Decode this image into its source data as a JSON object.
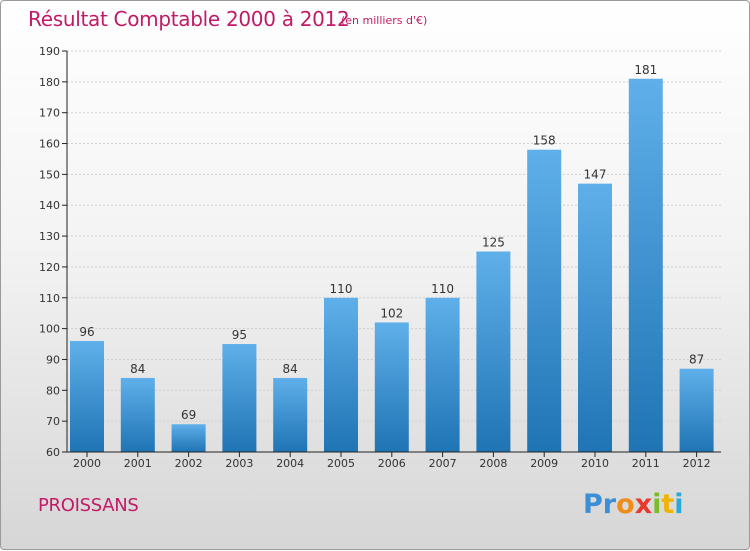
{
  "title": "Résultat Comptable 2000 à 2012",
  "unit_note": "(en milliers d'€)",
  "commune": "PROISSANS",
  "logo": {
    "letters": [
      "P",
      "r",
      "o",
      "x",
      "i",
      "t",
      "i"
    ],
    "colors": [
      "#3a8fd6",
      "#3a8fd6",
      "#f08c1c",
      "#e63a2e",
      "#7dbb2b",
      "#f0b400",
      "#2aa8d8"
    ]
  },
  "colors": {
    "accent": "#c21a66",
    "bar_top": "#5fb0ea",
    "bar_bottom": "#1f74b4",
    "axis": "#222222",
    "grid": "#d0d0d0"
  },
  "chart_data": {
    "type": "bar",
    "categories": [
      "2000",
      "2001",
      "2002",
      "2003",
      "2004",
      "2005",
      "2006",
      "2007",
      "2008",
      "2009",
      "2010",
      "2011",
      "2012"
    ],
    "values": [
      96,
      84,
      69,
      95,
      84,
      110,
      102,
      110,
      125,
      158,
      147,
      181,
      87
    ],
    "ylim": [
      60,
      190
    ],
    "yticks": [
      60,
      70,
      80,
      90,
      100,
      110,
      120,
      130,
      140,
      150,
      160,
      170,
      180,
      190
    ],
    "grid": true,
    "data_labels": true
  }
}
